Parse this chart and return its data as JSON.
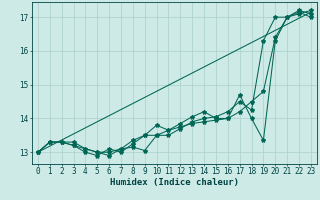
{
  "title": "",
  "xlabel": "Humidex (Indice chaleur)",
  "ylabel": "",
  "background_color": "#ceeae6",
  "grid_color": "#aacfcb",
  "line_color": "#006655",
  "xlim": [
    -0.5,
    23.5
  ],
  "ylim": [
    12.65,
    17.45
  ],
  "yticks": [
    13,
    14,
    15,
    16,
    17
  ],
  "xticks": [
    0,
    1,
    2,
    3,
    4,
    5,
    6,
    7,
    8,
    9,
    10,
    11,
    12,
    13,
    14,
    15,
    16,
    17,
    18,
    19,
    20,
    21,
    22,
    23
  ],
  "series": [
    [
      13.0,
      13.3,
      13.3,
      13.3,
      13.1,
      13.0,
      13.0,
      13.1,
      13.15,
      13.05,
      13.5,
      13.65,
      13.75,
      13.85,
      13.9,
      13.95,
      14.0,
      14.7,
      14.0,
      13.35,
      16.3,
      17.0,
      17.15,
      17.0
    ],
    [
      13.0,
      13.3,
      13.3,
      13.2,
      13.0,
      12.9,
      13.1,
      13.0,
      13.25,
      13.5,
      13.5,
      13.5,
      13.7,
      13.9,
      14.0,
      14.05,
      14.2,
      14.5,
      14.25,
      16.3,
      17.0,
      17.0,
      17.2,
      17.1
    ],
    [
      13.0,
      13.3,
      13.3,
      13.2,
      13.1,
      13.0,
      12.9,
      13.1,
      13.35,
      13.5,
      13.8,
      13.65,
      13.85,
      14.05,
      14.2,
      14.0,
      14.0,
      14.2,
      14.5,
      14.8,
      16.4,
      17.0,
      17.1,
      17.2
    ]
  ],
  "trend_line": [
    [
      0,
      23
    ],
    [
      13.0,
      17.15
    ]
  ],
  "marker": "*",
  "marker_size": 3,
  "line_width": 0.75,
  "font_color": "#004444",
  "tick_fontsize": 5.5,
  "xlabel_fontsize": 6.5
}
